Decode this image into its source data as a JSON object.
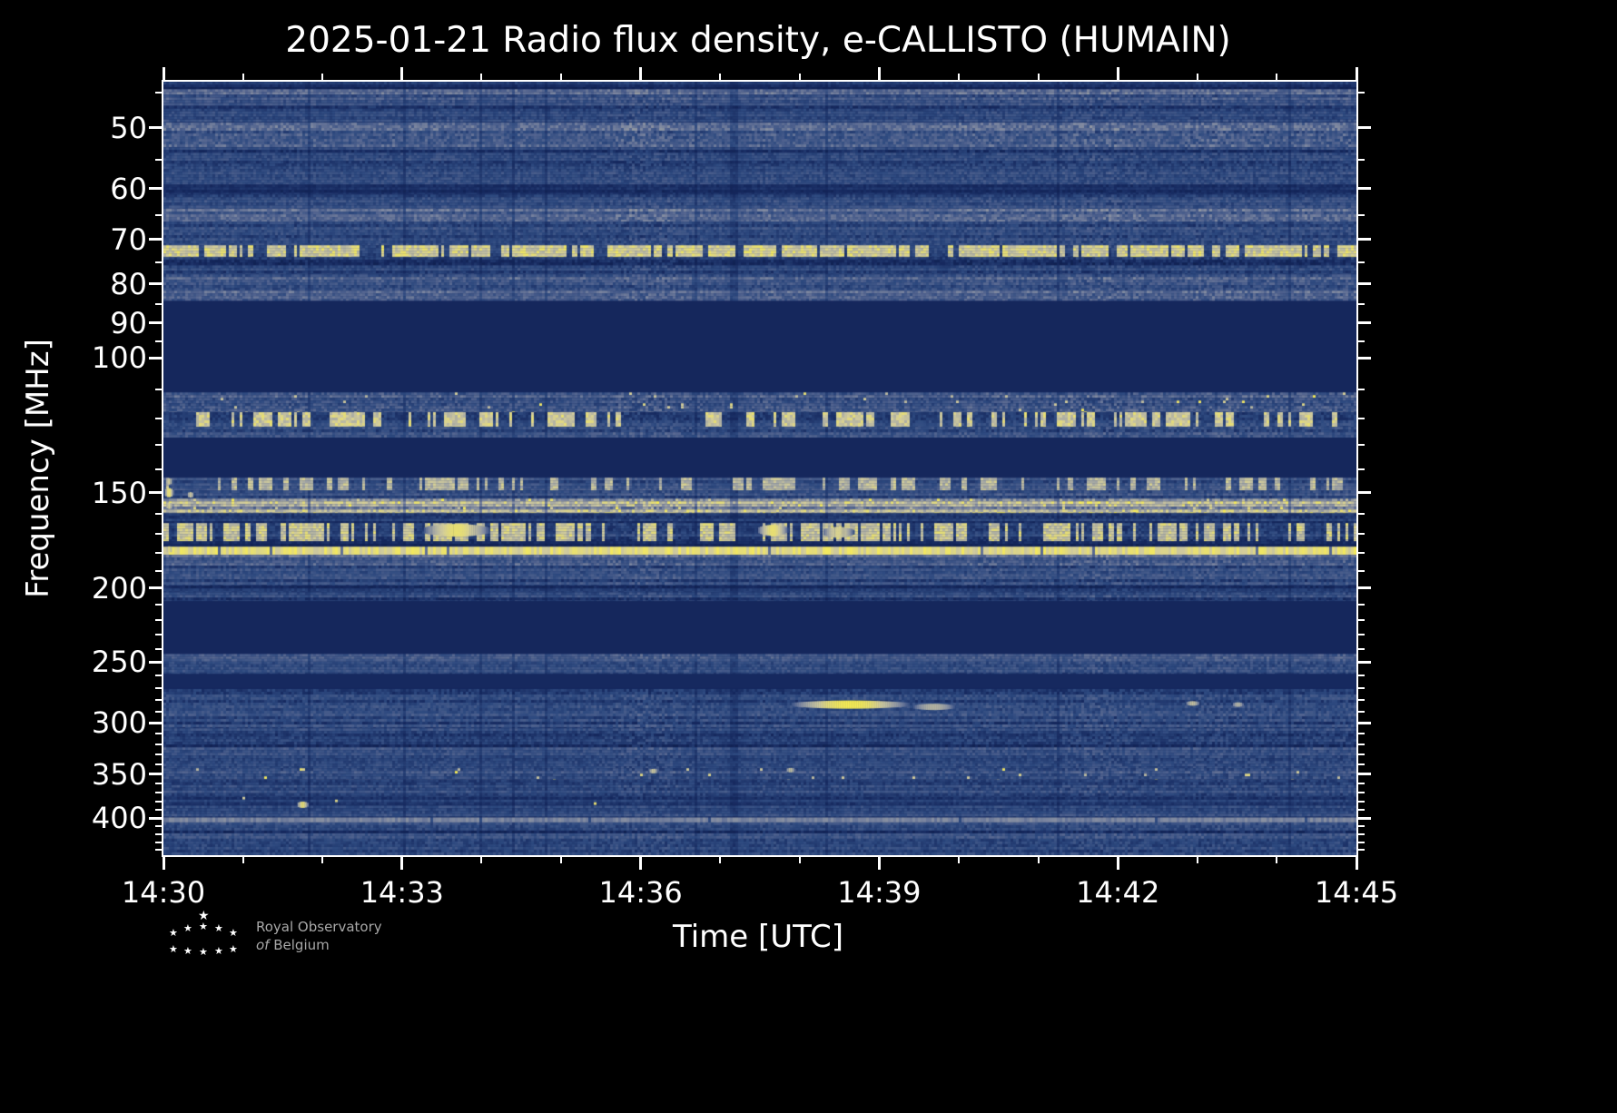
{
  "title": "2025-01-21 Radio flux density, e-CALLISTO (HUMAIN)",
  "axes": {
    "x_label": "Time [UTC]",
    "y_label": "Frequency [MHz]",
    "x_ticks": [
      "14:30",
      "14:33",
      "14:36",
      "14:39",
      "14:42",
      "14:45"
    ],
    "x_total_minutes": 15,
    "x_major_every_min": 3,
    "y_ticks": [
      50,
      60,
      70,
      80,
      90,
      100,
      150,
      200,
      250,
      300,
      350,
      400
    ],
    "y_minor_ticks": [
      45,
      55,
      65,
      75,
      85,
      95,
      110,
      120,
      130,
      140,
      160,
      170,
      180,
      190,
      210,
      220,
      230,
      240,
      260,
      270,
      280,
      290,
      310,
      320,
      330,
      340,
      360,
      370,
      380,
      390,
      410,
      420,
      430,
      440
    ],
    "f_min": 43.5,
    "f_max": 447
  },
  "branding": {
    "star_glyph": "★",
    "logo_line1": "Royal Observatory",
    "logo_line2_prefix": "of",
    "logo_line2_rest": "Belgium"
  },
  "colors": {
    "background": "#000000",
    "frame": "#ffffff",
    "text": "#ffffff",
    "logo_text": "#a8a8a8",
    "plot_dark": "#16295f",
    "plot_bright": "#f9ee52"
  },
  "chart_data": {
    "type": "heatmap",
    "title": "2025-01-21 Radio flux density, e-CALLISTO (HUMAIN)",
    "xlabel": "Time [UTC]",
    "ylabel": "Frequency [MHz]",
    "x_range": [
      "14:30",
      "14:45"
    ],
    "y_range_mhz": [
      43.5,
      447
    ],
    "y_scale": "log",
    "y_axis_inverted": true,
    "legend": "none",
    "grid": false,
    "seed": 20250121,
    "colormap_stops": [
      [
        0.0,
        "#0c1b47"
      ],
      [
        0.15,
        "#16295f"
      ],
      [
        0.32,
        "#2e4a80"
      ],
      [
        0.48,
        "#51638f"
      ],
      [
        0.62,
        "#7d87a0"
      ],
      [
        0.76,
        "#a8aaa4"
      ],
      [
        0.88,
        "#d2cc9c"
      ],
      [
        1.0,
        "#f9ee52"
      ]
    ],
    "persistent_rfi_mhz": [
      51,
      64,
      73,
      80,
      113,
      120,
      145,
      155,
      168,
      178,
      184,
      250,
      402
    ],
    "bands": [
      {
        "f1": 43.5,
        "f2": 44.5,
        "kind": "noise",
        "base": 0.2,
        "var": 0.1
      },
      {
        "f1": 44.5,
        "f2": 46.4,
        "kind": "noise",
        "base": 0.4,
        "var": 0.22
      },
      {
        "f1": 46.4,
        "f2": 49.2,
        "kind": "noise",
        "base": 0.3,
        "var": 0.18
      },
      {
        "f1": 49.2,
        "f2": 53.0,
        "kind": "noise",
        "base": 0.43,
        "var": 0.24,
        "label": "bright speckle ~50-52 MHz"
      },
      {
        "f1": 53.0,
        "f2": 59.3,
        "kind": "noise",
        "base": 0.29,
        "var": 0.18
      },
      {
        "f1": 59.3,
        "f2": 61.1,
        "kind": "noise",
        "base": 0.2,
        "var": 0.1
      },
      {
        "f1": 61.1,
        "f2": 63.8,
        "kind": "noise",
        "base": 0.3,
        "var": 0.18
      },
      {
        "f1": 63.8,
        "f2": 66.3,
        "kind": "noise",
        "base": 0.4,
        "var": 0.22
      },
      {
        "f1": 66.3,
        "f2": 71.2,
        "kind": "noise",
        "base": 0.29,
        "var": 0.18
      },
      {
        "f1": 71.2,
        "f2": 73.8,
        "kind": "dash",
        "bg": 0.24,
        "prob": 0.55,
        "stay": 0.88,
        "val": 0.97,
        "label": "intermittent RFI line ~73 MHz"
      },
      {
        "f1": 73.8,
        "f2": 77.7,
        "kind": "noise",
        "base": 0.28,
        "var": 0.18
      },
      {
        "f1": 77.7,
        "f2": 84.2,
        "kind": "noise",
        "base": 0.38,
        "var": 0.22,
        "label": "speckle ~80 MHz"
      },
      {
        "f1": 84.2,
        "f2": 110.9,
        "kind": "flat",
        "base": 0.13,
        "label": "blank band 85-111 MHz"
      },
      {
        "f1": 110.9,
        "f2": 117.7,
        "kind": "noise",
        "base": 0.4,
        "var": 0.25,
        "spike": 0.012
      },
      {
        "f1": 117.7,
        "f2": 123.0,
        "kind": "dash",
        "bg": 0.3,
        "prob": 0.22,
        "stay": 0.72,
        "val": 0.95,
        "label": "airband RFI ~120 MHz"
      },
      {
        "f1": 123.0,
        "f2": 127.1,
        "kind": "noise",
        "base": 0.36,
        "var": 0.2
      },
      {
        "f1": 127.1,
        "f2": 143.4,
        "kind": "flat",
        "base": 0.13,
        "label": "blank band 127-143 MHz"
      },
      {
        "f1": 143.4,
        "f2": 149.0,
        "kind": "dash",
        "bg": 0.42,
        "prob": 0.18,
        "stay": 0.66,
        "val": 0.9
      },
      {
        "f1": 149.0,
        "f2": 152.7,
        "kind": "noise",
        "base": 0.3,
        "var": 0.18
      },
      {
        "f1": 152.7,
        "f2": 159.6,
        "kind": "noise",
        "base": 0.66,
        "var": 0.26,
        "spike": 0.04,
        "label": "bright continuous band ~155 MHz"
      },
      {
        "f1": 159.6,
        "f2": 164.4,
        "kind": "noise",
        "base": 0.24,
        "var": 0.14
      },
      {
        "f1": 164.4,
        "f2": 173.7,
        "kind": "dash",
        "bg": 0.26,
        "prob": 0.3,
        "stay": 0.72,
        "val": 0.95,
        "label": "dense RFI dashes 165-174 MHz"
      },
      {
        "f1": 173.7,
        "f2": 176.5,
        "kind": "noise",
        "base": 0.18,
        "var": 0.1
      },
      {
        "f1": 176.5,
        "f2": 180.9,
        "kind": "line",
        "val": 0.92,
        "gap": 0.04,
        "label": "continuous bright RFI line ~178 MHz"
      },
      {
        "f1": 180.9,
        "f2": 186.9,
        "kind": "noise",
        "base": 0.44,
        "var": 0.22
      },
      {
        "f1": 186.9,
        "f2": 198.5,
        "kind": "noise",
        "base": 0.31,
        "var": 0.18
      },
      {
        "f1": 198.5,
        "f2": 202.5,
        "kind": "noise",
        "base": 0.22,
        "var": 0.12
      },
      {
        "f1": 202.5,
        "f2": 208.0,
        "kind": "noise",
        "base": 0.3,
        "var": 0.18
      },
      {
        "f1": 208.0,
        "f2": 243.8,
        "kind": "flat",
        "base": 0.13,
        "label": "blank band 208-244 MHz"
      },
      {
        "f1": 243.8,
        "f2": 247.5,
        "kind": "noise",
        "base": 0.38,
        "var": 0.2
      },
      {
        "f1": 247.5,
        "f2": 259.0,
        "kind": "noise",
        "base": 0.31,
        "var": 0.18
      },
      {
        "f1": 259.0,
        "f2": 271.0,
        "kind": "flat",
        "base": 0.15
      },
      {
        "f1": 271.0,
        "f2": 305.0,
        "kind": "noise",
        "base": 0.29,
        "var": 0.18
      },
      {
        "f1": 305.0,
        "f2": 344.0,
        "kind": "noise",
        "base": 0.3,
        "var": 0.18
      },
      {
        "f1": 344.0,
        "f2": 356.0,
        "kind": "noise",
        "base": 0.33,
        "var": 0.2,
        "spike": 0.01
      },
      {
        "f1": 356.0,
        "f2": 375.0,
        "kind": "noise",
        "base": 0.29,
        "var": 0.18
      },
      {
        "f1": 375.0,
        "f2": 385.0,
        "kind": "noise",
        "base": 0.22,
        "var": 0.12,
        "spike": 0.002
      },
      {
        "f1": 385.0,
        "f2": 399.0,
        "kind": "noise",
        "base": 0.28,
        "var": 0.16
      },
      {
        "f1": 399.0,
        "f2": 405.0,
        "kind": "line",
        "val": 0.6,
        "gap": 0.02,
        "label": "faint continuous line ~402 MHz"
      },
      {
        "f1": 405.0,
        "f2": 447.0,
        "kind": "noise",
        "base": 0.3,
        "var": 0.18
      }
    ],
    "events": [
      {
        "t": 0.575,
        "f": 284,
        "w": 0.05,
        "h": 9,
        "val": 1.0,
        "label": "bright transient streak ~285 MHz, 14:38-14:39"
      },
      {
        "t": 0.645,
        "f": 286,
        "w": 0.018,
        "h": 7,
        "val": 0.8
      },
      {
        "t": 0.862,
        "f": 283,
        "w": 0.006,
        "h": 5,
        "val": 0.85
      },
      {
        "t": 0.9,
        "f": 284,
        "w": 0.005,
        "h": 5,
        "val": 0.78
      },
      {
        "t": 0.116,
        "f": 384,
        "w": 0.005,
        "h": 7,
        "val": 0.95
      },
      {
        "t": 0.41,
        "f": 347,
        "w": 0.004,
        "h": 5,
        "val": 0.88
      },
      {
        "t": 0.525,
        "f": 346,
        "w": 0.004,
        "h": 5,
        "val": 0.84
      },
      {
        "t": 0.245,
        "f": 168,
        "w": 0.028,
        "h": 14,
        "val": 0.95
      },
      {
        "t": 0.51,
        "f": 168,
        "w": 0.013,
        "h": 12,
        "val": 0.95
      },
      {
        "t": 0.565,
        "f": 169,
        "w": 0.013,
        "h": 12,
        "val": 0.9
      },
      {
        "t": 0.004,
        "f": 150,
        "w": 0.004,
        "h": 10,
        "val": 0.95
      },
      {
        "t": 0.004,
        "f": 145,
        "w": 0.003,
        "h": 7,
        "val": 0.88
      },
      {
        "t": 0.004,
        "f": 156,
        "w": 0.003,
        "h": 7,
        "val": 0.9
      },
      {
        "t": 0.004,
        "f": 178,
        "w": 0.003,
        "h": 7,
        "val": 0.92
      },
      {
        "t": 0.022,
        "f": 151,
        "w": 0.003,
        "h": 6,
        "val": 0.85
      }
    ]
  }
}
